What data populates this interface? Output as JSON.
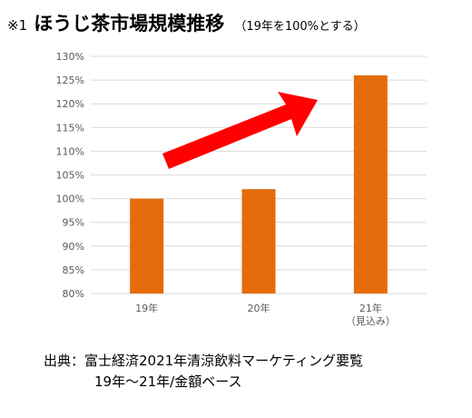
{
  "title": {
    "note": "※1",
    "main": "ほうじ茶市場規模推移",
    "sub": "（19年を100%とする）"
  },
  "chart_data": {
    "type": "bar",
    "categories": [
      "19年",
      "20年",
      "21年"
    ],
    "category_notes": [
      "",
      "",
      "（見込み）"
    ],
    "values": [
      100,
      102,
      126
    ],
    "unit": "%",
    "ylim": [
      80,
      130
    ],
    "yticks": [
      80,
      85,
      90,
      95,
      100,
      105,
      110,
      115,
      120,
      125,
      130
    ],
    "ytick_labels": [
      "80%",
      "85%",
      "90%",
      "95%",
      "100%",
      "105%",
      "110%",
      "115%",
      "120%",
      "125%",
      "130%"
    ],
    "grid": true,
    "bar_color": "#E46C0A",
    "annotation": {
      "type": "arrow",
      "direction": "up-right",
      "color": "#FF0000"
    }
  },
  "source": {
    "line1": "出典：富士経済2021年清涼飲料マーケティング要覧",
    "line2": "19年～21年/金額ベース"
  }
}
